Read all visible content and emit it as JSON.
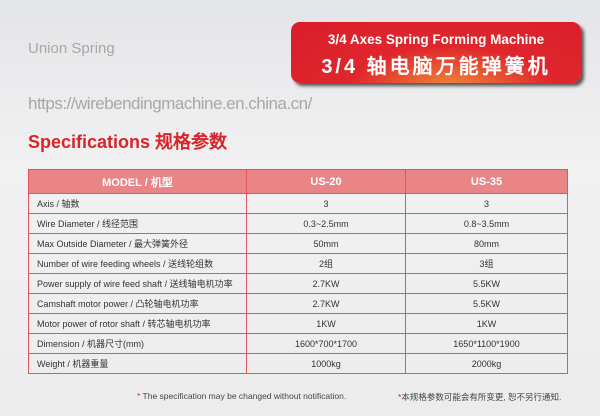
{
  "banner": {
    "title_en": "3/4 Axes Spring Forming Machine",
    "title_cn": "3/4 轴电脑万能弹簧机"
  },
  "section_title": "Specifications 规格参数",
  "table": {
    "headers": [
      "MODEL / 机型",
      "US-20",
      "US-35"
    ],
    "rows": [
      [
        "Axis / 轴数",
        "3",
        "3"
      ],
      [
        "Wire Diameter / 线径范围",
        "0.3~2.5mm",
        "0.8~3.5mm"
      ],
      [
        "Max Outside Diameter / 最大弹簧外径",
        "50mm",
        "80mm"
      ],
      [
        "Number of wire feeding wheels / 送线轮组数",
        "2组",
        "3组"
      ],
      [
        "Power supply of wire feed shaft / 送线轴电机功率",
        "2.7KW",
        "5.5KW"
      ],
      [
        "Camshaft motor power / 凸轮轴电机功率",
        "2.7KW",
        "5.5KW"
      ],
      [
        "Motor power of rotor shaft / 转芯轴电机功率",
        "1KW",
        "1KW"
      ],
      [
        "Dimension  / 机器尺寸(mm)",
        "1600*700*1700",
        "1650*1100*1900"
      ],
      [
        "Weight / 机器重量",
        "1000kg",
        "2000kg"
      ]
    ]
  },
  "watermark": {
    "brand": "Union Spring",
    "url": "https://wirebendingmachine.en.china.cn/"
  },
  "notes": {
    "star": "*",
    "en": "The specification may be changed without notification.",
    "cn": "本规格参数可能会有所变更, 恕不另行通知."
  },
  "colors": {
    "accent": "#d8242b",
    "header_bg": "#ea8587"
  }
}
